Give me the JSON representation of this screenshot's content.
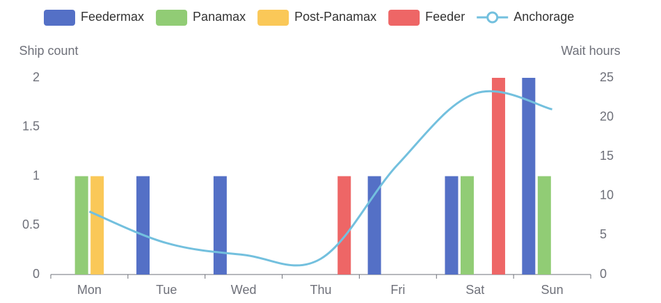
{
  "chart_data": {
    "type": "bar",
    "categories": [
      "Mon",
      "Tue",
      "Wed",
      "Thu",
      "Fri",
      "Sat",
      "Sun"
    ],
    "series": [
      {
        "name": "Feedermax",
        "color": "#5470c6",
        "values": [
          0,
          1,
          1,
          0,
          1,
          1,
          2
        ]
      },
      {
        "name": "Panamax",
        "color": "#91cc75",
        "values": [
          1,
          0,
          0,
          0,
          0,
          1,
          1
        ]
      },
      {
        "name": "Post-Panamax",
        "color": "#fac858",
        "values": [
          1,
          0,
          0,
          0,
          0,
          0,
          0
        ]
      },
      {
        "name": "Feeder",
        "color": "#ee6666",
        "values": [
          0,
          0,
          0,
          1,
          0,
          2,
          0
        ]
      },
      {
        "name": "Anchorage",
        "color": "#73c0de",
        "type": "line",
        "smooth": true,
        "axis": "y2",
        "values": [
          8,
          4,
          2.5,
          2,
          14,
          23,
          21
        ]
      }
    ],
    "ylabel": "Ship count",
    "y2label": "Wait hours",
    "ylim": [
      0,
      2
    ],
    "yticks": [
      0,
      0.5,
      1,
      1.5,
      2
    ],
    "y2lim": [
      0,
      25
    ],
    "y2ticks": [
      0,
      5,
      10,
      15,
      20,
      25
    ],
    "legend": "top"
  }
}
